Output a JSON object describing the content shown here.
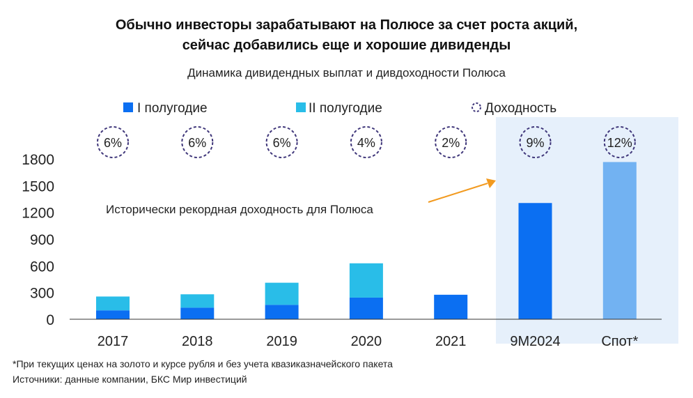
{
  "title_lines": [
    "Обычно инвесторы зарабатывают на Полюсе за счет роста акций,",
    "сейчас добавились еще и хорошие дивиденды"
  ],
  "subtitle": "Динамика дивидендных выплат и дивдоходности Полюса",
  "legend": {
    "h1": "I полугодие",
    "h2": "II полугодие",
    "yield": "Доходность"
  },
  "annotation": "Исторически рекордная доходность для Полюса",
  "footnotes": {
    "line1": "*При текущих ценах на золото и курсе рубля и без учета квазиказначейского пакета",
    "line2": "Источники: данные компании, БКС Мир инвестиций"
  },
  "colors": {
    "h1": "#0b6ff2",
    "h2": "#29bde8",
    "spot": "#72b2f2",
    "highlight": "#e6f0fb",
    "yield_circle": "#3e3579",
    "arrow": "#f29a1f",
    "axis": "#333333"
  },
  "chart_data": {
    "type": "bar",
    "stacked": true,
    "categories": [
      "2017",
      "2018",
      "2019",
      "2020",
      "2021",
      "9M2024",
      "Спот*"
    ],
    "series": [
      {
        "name": "I полугодие",
        "values": [
          100,
          130,
          162,
          243,
          275,
          1305,
          null
        ]
      },
      {
        "name": "II полугодие",
        "values": [
          155,
          150,
          248,
          385,
          0,
          0,
          null
        ]
      },
      {
        "name": "Спот*",
        "values": [
          null,
          null,
          null,
          null,
          null,
          null,
          1765
        ]
      }
    ],
    "yield_labels": [
      "6%",
      "6%",
      "6%",
      "4%",
      "2%",
      "9%",
      "12%"
    ],
    "ylim": [
      0,
      1800
    ],
    "yticks": [
      0,
      300,
      600,
      900,
      1200,
      1500,
      1800
    ],
    "highlighted_categories": [
      "9M2024",
      "Спот*"
    ],
    "xlabel": "",
    "ylabel": ""
  }
}
